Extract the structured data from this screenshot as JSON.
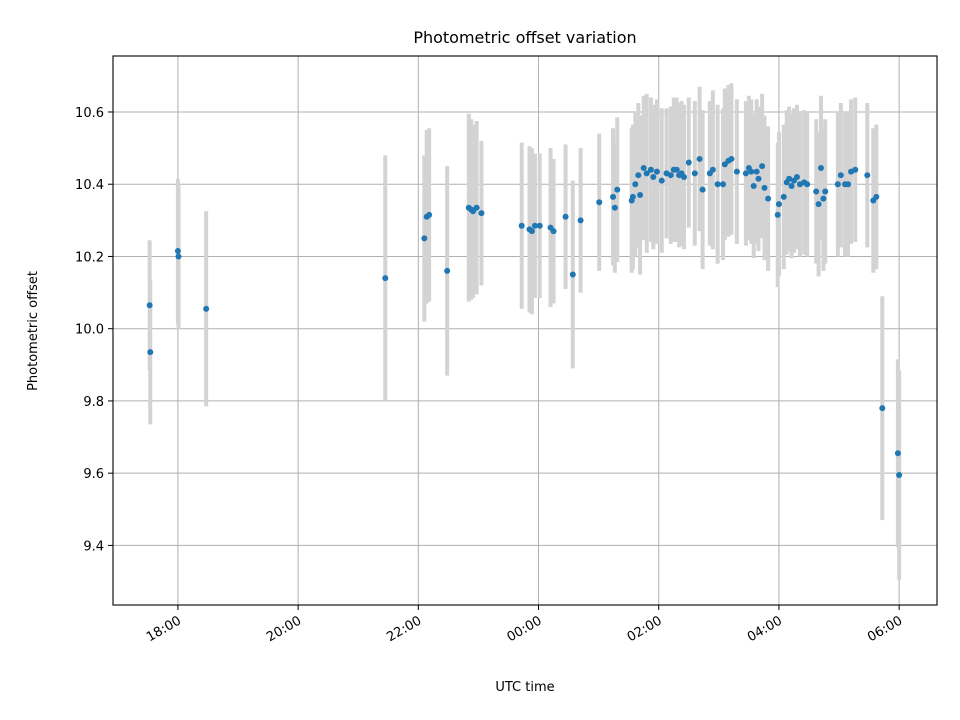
{
  "chart_data": {
    "type": "scatter",
    "title": "Photometric offset variation",
    "xlabel": "UTC time",
    "ylabel": "Photometric offset",
    "x_unit": "hours (UTC, continuing past midnight)",
    "xlim": [
      16.92,
      30.63
    ],
    "ylim": [
      9.235,
      10.755
    ],
    "x_ticks": [
      {
        "v": 18,
        "label": "18:00"
      },
      {
        "v": 20,
        "label": "20:00"
      },
      {
        "v": 22,
        "label": "22:00"
      },
      {
        "v": 24,
        "label": "00:00"
      },
      {
        "v": 26,
        "label": "02:00"
      },
      {
        "v": 28,
        "label": "04:00"
      },
      {
        "v": 30,
        "label": "06:00"
      }
    ],
    "y_ticks": [
      {
        "v": 9.4,
        "label": "9.4"
      },
      {
        "v": 9.6,
        "label": "9.6"
      },
      {
        "v": 9.8,
        "label": "9.8"
      },
      {
        "v": 10.0,
        "label": "10.0"
      },
      {
        "v": 10.2,
        "label": "10.2"
      },
      {
        "v": 10.4,
        "label": "10.4"
      },
      {
        "v": 10.6,
        "label": "10.6"
      }
    ],
    "grid": true,
    "colors": {
      "point": "#1f77b4",
      "errorbar": "#d3d3d3",
      "grid": "#b0b0b0"
    },
    "series": [
      {
        "points": [
          {
            "x": 17.53,
            "y": 10.065,
            "err": 0.18
          },
          {
            "x": 17.54,
            "y": 9.935,
            "err": 0.2
          },
          {
            "x": 18.0,
            "y": 10.215,
            "err": 0.2
          },
          {
            "x": 18.01,
            "y": 10.2,
            "err": 0.2
          },
          {
            "x": 18.47,
            "y": 10.055,
            "err": 0.27
          },
          {
            "x": 21.45,
            "y": 10.14,
            "err": 0.34
          },
          {
            "x": 22.1,
            "y": 10.25,
            "err": 0.23
          },
          {
            "x": 22.14,
            "y": 10.31,
            "err": 0.24
          },
          {
            "x": 22.18,
            "y": 10.315,
            "err": 0.24
          },
          {
            "x": 22.48,
            "y": 10.16,
            "err": 0.29
          },
          {
            "x": 22.84,
            "y": 10.335,
            "err": 0.26
          },
          {
            "x": 22.88,
            "y": 10.33,
            "err": 0.25
          },
          {
            "x": 22.91,
            "y": 10.325,
            "err": 0.24
          },
          {
            "x": 22.97,
            "y": 10.335,
            "err": 0.24
          },
          {
            "x": 23.05,
            "y": 10.32,
            "err": 0.2
          },
          {
            "x": 23.72,
            "y": 10.285,
            "err": 0.23
          },
          {
            "x": 23.85,
            "y": 10.275,
            "err": 0.23
          },
          {
            "x": 23.89,
            "y": 10.27,
            "err": 0.23
          },
          {
            "x": 23.94,
            "y": 10.285,
            "err": 0.2
          },
          {
            "x": 24.02,
            "y": 10.285,
            "err": 0.2
          },
          {
            "x": 24.2,
            "y": 10.28,
            "err": 0.22
          },
          {
            "x": 24.25,
            "y": 10.27,
            "err": 0.2
          },
          {
            "x": 24.45,
            "y": 10.31,
            "err": 0.2
          },
          {
            "x": 24.57,
            "y": 10.15,
            "err": 0.26
          },
          {
            "x": 24.7,
            "y": 10.3,
            "err": 0.2
          },
          {
            "x": 25.01,
            "y": 10.35,
            "err": 0.19
          },
          {
            "x": 25.24,
            "y": 10.365,
            "err": 0.19
          },
          {
            "x": 25.27,
            "y": 10.335,
            "err": 0.18
          },
          {
            "x": 25.31,
            "y": 10.385,
            "err": 0.2
          },
          {
            "x": 25.55,
            "y": 10.355,
            "err": 0.2
          },
          {
            "x": 25.57,
            "y": 10.365,
            "err": 0.2
          },
          {
            "x": 25.61,
            "y": 10.4,
            "err": 0.2
          },
          {
            "x": 25.66,
            "y": 10.425,
            "err": 0.2
          },
          {
            "x": 25.69,
            "y": 10.37,
            "err": 0.22
          },
          {
            "x": 25.75,
            "y": 10.445,
            "err": 0.2
          },
          {
            "x": 25.8,
            "y": 10.43,
            "err": 0.22
          },
          {
            "x": 25.87,
            "y": 10.44,
            "err": 0.2
          },
          {
            "x": 25.91,
            "y": 10.42,
            "err": 0.2
          },
          {
            "x": 25.97,
            "y": 10.435,
            "err": 0.2
          },
          {
            "x": 26.05,
            "y": 10.41,
            "err": 0.2
          },
          {
            "x": 26.13,
            "y": 10.43,
            "err": 0.18
          },
          {
            "x": 26.2,
            "y": 10.425,
            "err": 0.19
          },
          {
            "x": 26.25,
            "y": 10.44,
            "err": 0.2
          },
          {
            "x": 26.3,
            "y": 10.44,
            "err": 0.2
          },
          {
            "x": 26.34,
            "y": 10.425,
            "err": 0.2
          },
          {
            "x": 26.38,
            "y": 10.43,
            "err": 0.2
          },
          {
            "x": 26.42,
            "y": 10.42,
            "err": 0.2
          },
          {
            "x": 26.5,
            "y": 10.46,
            "err": 0.18
          },
          {
            "x": 26.6,
            "y": 10.43,
            "err": 0.2
          },
          {
            "x": 26.68,
            "y": 10.47,
            "err": 0.2
          },
          {
            "x": 26.73,
            "y": 10.385,
            "err": 0.22
          },
          {
            "x": 26.85,
            "y": 10.43,
            "err": 0.2
          },
          {
            "x": 26.9,
            "y": 10.44,
            "err": 0.22
          },
          {
            "x": 26.98,
            "y": 10.4,
            "err": 0.22
          },
          {
            "x": 27.07,
            "y": 10.4,
            "err": 0.21
          },
          {
            "x": 27.1,
            "y": 10.455,
            "err": 0.21
          },
          {
            "x": 27.16,
            "y": 10.465,
            "err": 0.21
          },
          {
            "x": 27.21,
            "y": 10.47,
            "err": 0.21
          },
          {
            "x": 27.3,
            "y": 10.435,
            "err": 0.2
          },
          {
            "x": 27.45,
            "y": 10.43,
            "err": 0.2
          },
          {
            "x": 27.5,
            "y": 10.445,
            "err": 0.2
          },
          {
            "x": 27.54,
            "y": 10.435,
            "err": 0.2
          },
          {
            "x": 27.58,
            "y": 10.395,
            "err": 0.2
          },
          {
            "x": 27.63,
            "y": 10.435,
            "err": 0.2
          },
          {
            "x": 27.66,
            "y": 10.415,
            "err": 0.2
          },
          {
            "x": 27.72,
            "y": 10.45,
            "err": 0.2
          },
          {
            "x": 27.76,
            "y": 10.39,
            "err": 0.2
          },
          {
            "x": 27.82,
            "y": 10.36,
            "err": 0.2
          },
          {
            "x": 27.98,
            "y": 10.315,
            "err": 0.2
          },
          {
            "x": 28.0,
            "y": 10.345,
            "err": 0.2
          },
          {
            "x": 28.08,
            "y": 10.365,
            "err": 0.2
          },
          {
            "x": 28.13,
            "y": 10.405,
            "err": 0.2
          },
          {
            "x": 28.17,
            "y": 10.415,
            "err": 0.2
          },
          {
            "x": 28.21,
            "y": 10.395,
            "err": 0.2
          },
          {
            "x": 28.25,
            "y": 10.41,
            "err": 0.2
          },
          {
            "x": 28.3,
            "y": 10.42,
            "err": 0.2
          },
          {
            "x": 28.35,
            "y": 10.4,
            "err": 0.2
          },
          {
            "x": 28.42,
            "y": 10.405,
            "err": 0.2
          },
          {
            "x": 28.47,
            "y": 10.4,
            "err": 0.2
          },
          {
            "x": 28.62,
            "y": 10.38,
            "err": 0.2
          },
          {
            "x": 28.66,
            "y": 10.345,
            "err": 0.2
          },
          {
            "x": 28.7,
            "y": 10.445,
            "err": 0.2
          },
          {
            "x": 28.74,
            "y": 10.36,
            "err": 0.2
          },
          {
            "x": 28.77,
            "y": 10.38,
            "err": 0.2
          },
          {
            "x": 28.98,
            "y": 10.4,
            "err": 0.2
          },
          {
            "x": 29.03,
            "y": 10.425,
            "err": 0.2
          },
          {
            "x": 29.1,
            "y": 10.4,
            "err": 0.2
          },
          {
            "x": 29.15,
            "y": 10.4,
            "err": 0.2
          },
          {
            "x": 29.2,
            "y": 10.435,
            "err": 0.2
          },
          {
            "x": 29.27,
            "y": 10.44,
            "err": 0.2
          },
          {
            "x": 29.47,
            "y": 10.425,
            "err": 0.2
          },
          {
            "x": 29.57,
            "y": 10.355,
            "err": 0.2
          },
          {
            "x": 29.62,
            "y": 10.365,
            "err": 0.2
          },
          {
            "x": 29.72,
            "y": 9.78,
            "err": 0.31
          },
          {
            "x": 29.98,
            "y": 9.655,
            "err": 0.26
          },
          {
            "x": 30.0,
            "y": 9.595,
            "err": 0.29
          }
        ]
      }
    ]
  }
}
